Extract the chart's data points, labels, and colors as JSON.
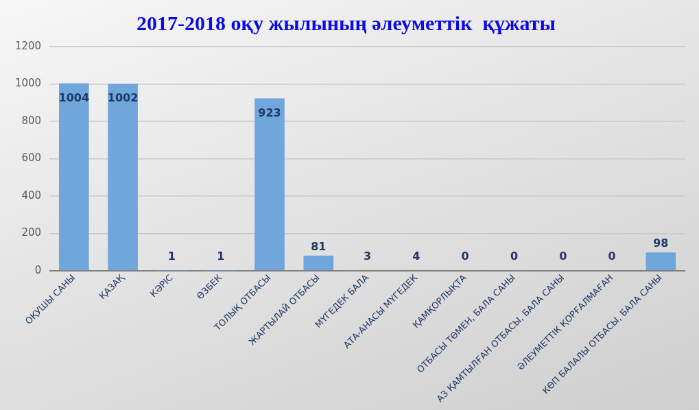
{
  "chart_data": {
    "type": "bar",
    "title": "2017-2018 оқу жылының әлеуметтік  құжаты",
    "categories": [
      "ОҚУШЫ САНЫ",
      "ҚАЗАҚ",
      "КӘРІС",
      "ӨЗБЕК",
      "ТОЛЫҚ ОТБАСЫ",
      "ЖАРТЫЛАЙ ОТБАСЫ",
      "МҮГЕДЕК БАЛА",
      "АТА-АНАСЫ МҮГЕДЕК",
      "ҚАМҚОРЛЫҚТА",
      "ОТБАСЫ ТӨМЕН, БАЛА САНЫ",
      "АЗ ҚАМТЫЛҒАН ОТБАСЫ, БАЛА САНЫ",
      "ӘЛЕУМЕТТІК ҚОРҒАЛМАҒАН",
      "КӨП БАЛАЛЫ ОТБАСЫ, БАЛА САНЫ"
    ],
    "values": [
      1004,
      1002,
      1,
      1,
      923,
      81,
      3,
      4,
      0,
      0,
      0,
      0,
      98
    ],
    "color": "#6fa6dc",
    "ylim": [
      0,
      1200
    ],
    "yticks": [
      0,
      200,
      400,
      600,
      800,
      1000,
      1200
    ],
    "grid": "y",
    "data_labels": true
  }
}
